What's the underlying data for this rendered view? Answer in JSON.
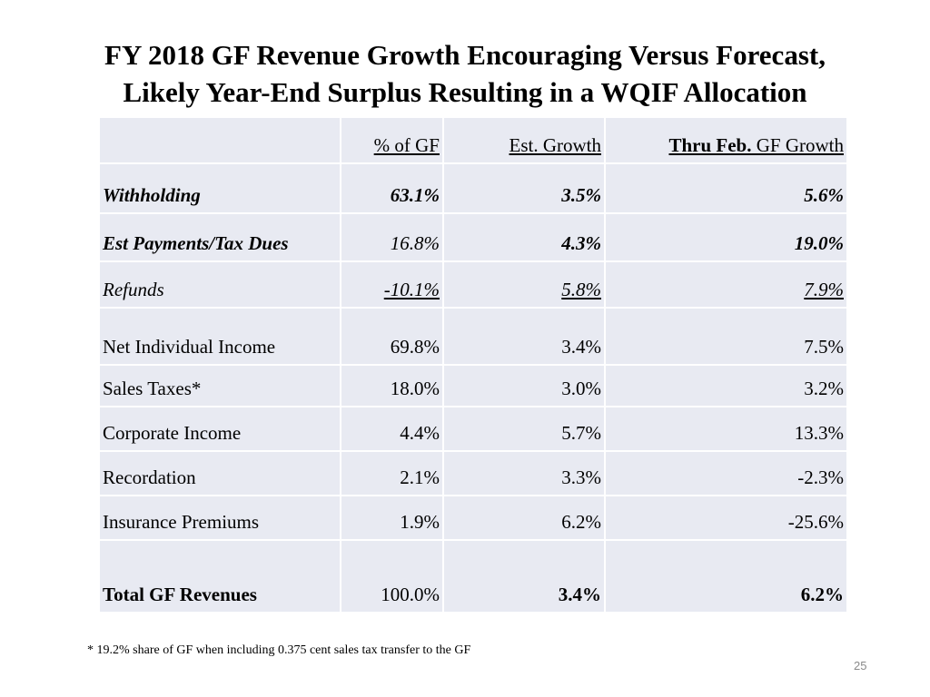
{
  "title": {
    "line1": "FY 2018 GF Revenue Growth Encouraging Versus Forecast,",
    "line2": "Likely Year-End Surplus Resulting in a WQIF Allocation"
  },
  "table": {
    "headers": {
      "share": "% of GF",
      "est_growth": "Est. Growth",
      "thru_feb_bold": "Thru Feb.",
      "thru_feb_rest": " GF Growth"
    },
    "rows": [
      {
        "label": "Withholding",
        "share": "63.1%",
        "est_growth": "3.5%",
        "thru_feb": "5.6%"
      },
      {
        "label": "Est Payments/Tax Dues",
        "share": "16.8%",
        "est_growth": "4.3%",
        "thru_feb": "19.0%"
      },
      {
        "label": "Refunds",
        "share": "-10.1%",
        "est_growth": "5.8%",
        "thru_feb": "7.9%"
      },
      {
        "label": "Net Individual Income",
        "share": "69.8%",
        "est_growth": "3.4%",
        "thru_feb": "7.5%"
      },
      {
        "label": "Sales Taxes*",
        "share": "18.0%",
        "est_growth": "3.0%",
        "thru_feb": "3.2%"
      },
      {
        "label": "Corporate Income",
        "share": "4.4%",
        "est_growth": "5.7%",
        "thru_feb": "13.3%"
      },
      {
        "label": "Recordation",
        "share": "2.1%",
        "est_growth": "3.3%",
        "thru_feb": "-2.3%"
      },
      {
        "label": "Insurance Premiums",
        "share": "1.9%",
        "est_growth": "6.2%",
        "thru_feb": "-25.6%"
      },
      {
        "label": "Total GF Revenues",
        "share": "100.0%",
        "est_growth": "3.4%",
        "thru_feb": "6.2%"
      }
    ]
  },
  "footnote": "* 19.2% share of GF when including 0.375 cent sales tax transfer to the GF",
  "page_number": "25",
  "colors": {
    "table_fill": "#e8eaf2",
    "page_number": "#8a8a8a"
  }
}
